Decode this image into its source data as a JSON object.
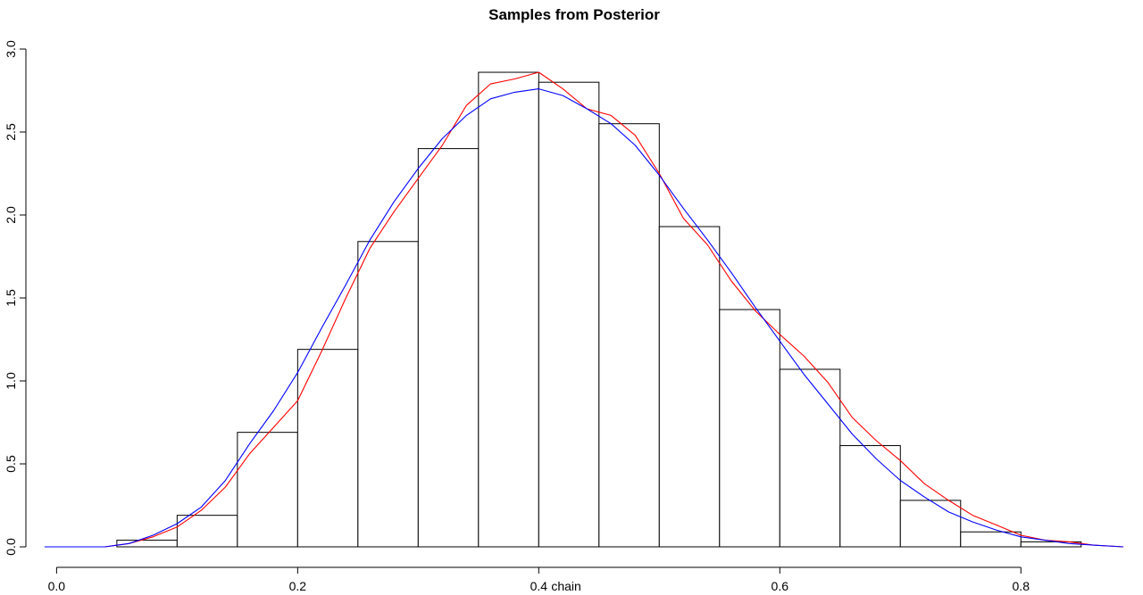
{
  "chart_data": {
    "type": "bar",
    "title": "Samples from Posterior",
    "xlabel": "chain",
    "ylabel": "",
    "xlim": [
      -0.0025,
      0.885
    ],
    "ylim": [
      0,
      3.0
    ],
    "x_ticks": [
      0.0,
      0.2,
      0.4,
      0.6,
      0.8
    ],
    "x_tick_labels": [
      "0.0",
      "0.2",
      "0.4",
      "0.6",
      "0.8"
    ],
    "y_ticks": [
      0.0,
      0.5,
      1.0,
      1.5,
      2.0,
      2.5,
      3.0
    ],
    "y_tick_labels": [
      "0.0",
      "0.5",
      "1.0",
      "1.5",
      "2.0",
      "2.5",
      "3.0"
    ],
    "grid": false,
    "legend": "none",
    "histogram": {
      "bin_edges": [
        0.05,
        0.1,
        0.15,
        0.2,
        0.25,
        0.3,
        0.35,
        0.4,
        0.45,
        0.5,
        0.55,
        0.6,
        0.65,
        0.7,
        0.75,
        0.8,
        0.85
      ],
      "values": [
        0.04,
        0.19,
        0.69,
        1.19,
        1.84,
        2.4,
        2.86,
        2.8,
        2.55,
        1.93,
        1.43,
        1.07,
        0.61,
        0.28,
        0.09,
        0.03
      ],
      "color": "#000000"
    },
    "series": [
      {
        "type": "line",
        "color": "#ff0000",
        "x": [
          -0.01,
          0.04,
          0.06,
          0.08,
          0.1,
          0.12,
          0.14,
          0.16,
          0.18,
          0.2,
          0.22,
          0.24,
          0.26,
          0.28,
          0.3,
          0.32,
          0.34,
          0.36,
          0.38,
          0.4,
          0.42,
          0.44,
          0.46,
          0.48,
          0.5,
          0.52,
          0.54,
          0.56,
          0.58,
          0.6,
          0.62,
          0.64,
          0.66,
          0.68,
          0.7,
          0.72,
          0.74,
          0.76,
          0.78,
          0.8,
          0.82,
          0.84,
          0.86,
          0.885
        ],
        "y": [
          0.0,
          0.0,
          0.02,
          0.06,
          0.12,
          0.22,
          0.36,
          0.56,
          0.72,
          0.88,
          1.18,
          1.5,
          1.8,
          2.02,
          2.22,
          2.42,
          2.66,
          2.79,
          2.82,
          2.86,
          2.76,
          2.64,
          2.6,
          2.48,
          2.25,
          1.98,
          1.82,
          1.6,
          1.42,
          1.28,
          1.15,
          0.99,
          0.78,
          0.64,
          0.52,
          0.38,
          0.28,
          0.19,
          0.13,
          0.07,
          0.04,
          0.03,
          0.01,
          0.0
        ]
      },
      {
        "type": "line",
        "color": "#0000ff",
        "x": [
          -0.01,
          0.04,
          0.06,
          0.08,
          0.1,
          0.12,
          0.14,
          0.16,
          0.18,
          0.2,
          0.22,
          0.24,
          0.26,
          0.28,
          0.3,
          0.32,
          0.34,
          0.36,
          0.38,
          0.4,
          0.42,
          0.44,
          0.46,
          0.48,
          0.5,
          0.52,
          0.54,
          0.56,
          0.58,
          0.6,
          0.62,
          0.64,
          0.66,
          0.68,
          0.7,
          0.72,
          0.74,
          0.76,
          0.78,
          0.8,
          0.82,
          0.84,
          0.86,
          0.885
        ],
        "y": [
          0.0,
          0.0,
          0.02,
          0.07,
          0.14,
          0.24,
          0.4,
          0.62,
          0.82,
          1.05,
          1.32,
          1.58,
          1.85,
          2.08,
          2.28,
          2.46,
          2.6,
          2.7,
          2.74,
          2.76,
          2.72,
          2.64,
          2.55,
          2.42,
          2.24,
          2.04,
          1.85,
          1.65,
          1.44,
          1.24,
          1.04,
          0.86,
          0.68,
          0.53,
          0.4,
          0.3,
          0.21,
          0.15,
          0.1,
          0.06,
          0.04,
          0.02,
          0.01,
          0.0
        ]
      }
    ]
  }
}
